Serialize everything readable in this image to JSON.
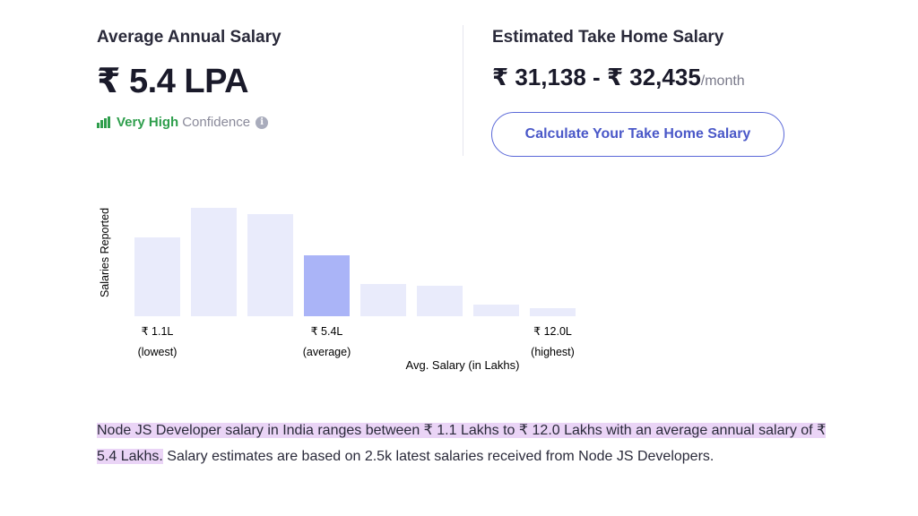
{
  "salary": {
    "avg_heading": "Average Annual Salary",
    "avg_value": "₹ 5.4 LPA",
    "confidence_level": "Very High",
    "confidence_word": "Confidence",
    "info_symbol": "i",
    "takehome_heading": "Estimated Take Home Salary",
    "takehome_value": "₹ 31,138 - ₹ 32,435",
    "takehome_unit": "/month",
    "calc_button": "Calculate Your Take Home Salary"
  },
  "icons": {
    "confidence": "bar-signal-icon",
    "info": "info-icon"
  },
  "colors": {
    "bar_default": "#e9ebfb",
    "bar_highlight": "#aab4f7",
    "confidence_green": "#2e9e4c",
    "button_accent": "#4a58c8",
    "highlight_bg": "#ead4f6"
  },
  "chart_data": {
    "type": "bar",
    "ylabel": "Salaries Reported",
    "xlabel": "Avg. Salary (in Lakhs)",
    "categories": [
      "b1",
      "b2",
      "b3",
      "b4",
      "b5",
      "b6",
      "b7",
      "b8"
    ],
    "values": [
      88,
      121,
      114,
      68,
      36,
      34,
      13,
      9
    ],
    "highlight_index": 3,
    "tick_labels": [
      {
        "index": 0,
        "value": "₹ 1.1L",
        "sub": "(lowest)"
      },
      {
        "index": 3,
        "value": "₹ 5.4L",
        "sub": "(average)"
      },
      {
        "index": 7,
        "value": "₹ 12.0L",
        "sub": "(highest)"
      }
    ],
    "ylim": [
      0,
      125
    ]
  },
  "description": {
    "highlighted_1": "Node JS Developer salary in India ranges between ₹ 1.1 Lakhs to ₹ 12.0 Lakhs with an average annual salary of ₹ 5.4 Lakhs.",
    "rest": " Salary estimates are based on 2.5k latest salaries received from Node JS Developers."
  }
}
